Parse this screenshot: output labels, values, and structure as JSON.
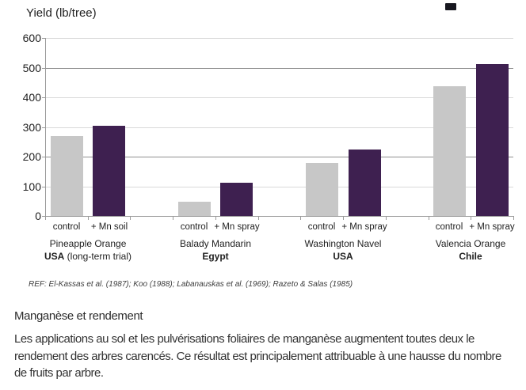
{
  "page": {
    "heading": "Manganèse et rendement",
    "paragraph": "Les applications au sol et les pulvérisations foliaires de manganèse augmentent toutes deux le rendement des arbres carencés. Ce résultat est principalement attribuable à une hausse du nombre de fruits par arbre."
  },
  "chart_data": {
    "type": "bar",
    "title": "Yield (lb/tree)",
    "ylabel": "Yield (lb/tree)",
    "ylim": [
      0,
      600
    ],
    "yticks": [
      600,
      500,
      400,
      300,
      200,
      100,
      0
    ],
    "grid": true,
    "legend_position": "none",
    "colors": {
      "control_bar": "#c7c7c7",
      "treated_bar": "#3e2050",
      "grid_light": "#d9d9d9",
      "grid_dark": "#8f8f8f",
      "axis": "#9b9b9b",
      "text": "#1f1f1f"
    },
    "dark_gridline_values": [
      500,
      200
    ],
    "groups": [
      {
        "variety": "Pineapple Orange",
        "country": "USA",
        "country_note": "(long-term trial)",
        "bars": [
          {
            "label": "control",
            "value": 270,
            "series": "control"
          },
          {
            "label": "+ Mn soil",
            "value": 305,
            "series": "treated"
          }
        ]
      },
      {
        "variety": "Balady Mandarin",
        "country": "Egypt",
        "country_note": "",
        "bars": [
          {
            "label": "control",
            "value": 47,
            "series": "control"
          },
          {
            "label": "+ Mn spray",
            "value": 112,
            "series": "treated"
          }
        ]
      },
      {
        "variety": "Washington Navel",
        "country": "USA",
        "country_note": "",
        "bars": [
          {
            "label": "control",
            "value": 178,
            "series": "control"
          },
          {
            "label": "+ Mn spray",
            "value": 225,
            "series": "treated"
          }
        ]
      },
      {
        "variety": "Valencia Orange",
        "country": "Chile",
        "country_note": "",
        "bars": [
          {
            "label": "control",
            "value": 437,
            "series": "control"
          },
          {
            "label": "+ Mn spray",
            "value": 512,
            "series": "treated"
          }
        ]
      }
    ],
    "reference": "REF: El-Kassas et al. (1987); Koo (1988); Labanauskas  et al. (1969); Razeto  & Salas (1985)"
  }
}
